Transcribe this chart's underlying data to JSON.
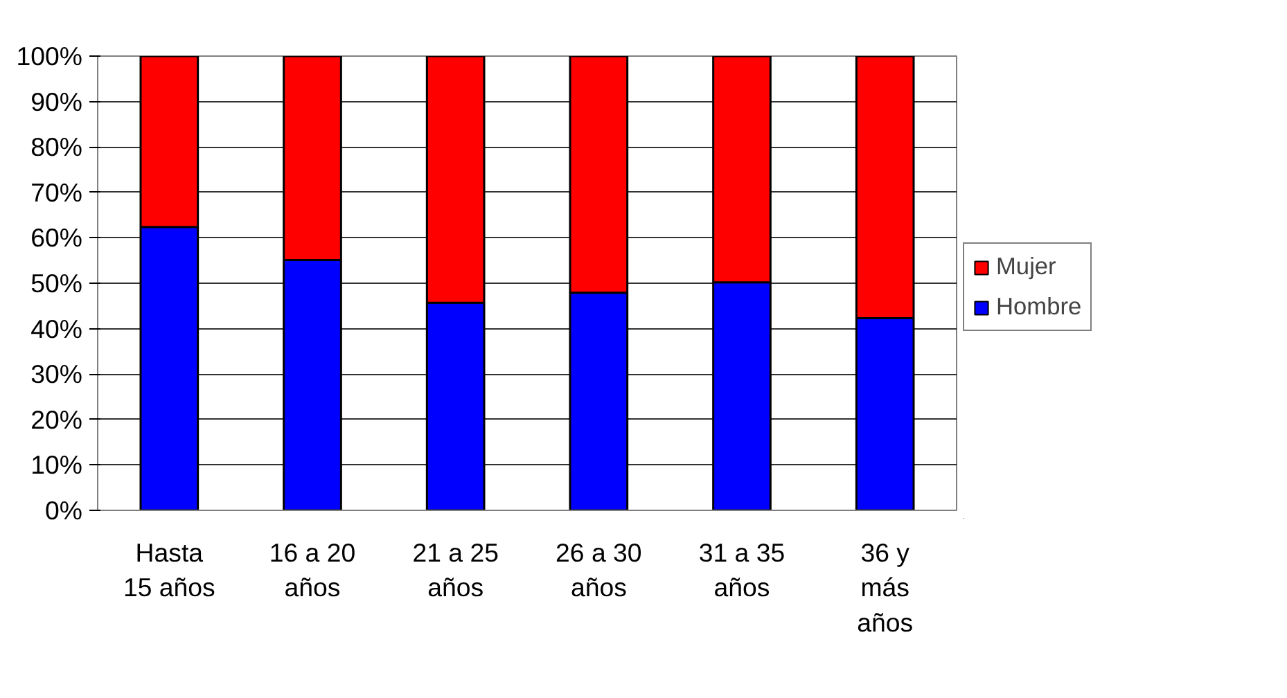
{
  "chart_data": {
    "type": "bar",
    "stacked": true,
    "categories": [
      "Hasta\n15 años",
      "16 a 20\naños",
      "21 a 25\naños",
      "26 a 30\naños",
      "31 a 35\naños",
      "36 y\nmás\naños"
    ],
    "series": [
      {
        "name": "Hombre",
        "color": "#0000ff",
        "values": [
          62.4,
          55.1,
          45.7,
          47.9,
          50.2,
          42.3
        ]
      },
      {
        "name": "Mujer",
        "color": "#ff0000",
        "values": [
          37.6,
          44.9,
          54.3,
          52.1,
          49.8,
          57.7
        ]
      }
    ],
    "ylim": [
      0,
      100
    ],
    "yticks": [
      {
        "value": 0,
        "label": "0%"
      },
      {
        "value": 10,
        "label": "10%"
      },
      {
        "value": 20,
        "label": "20%"
      },
      {
        "value": 30,
        "label": "30%"
      },
      {
        "value": 40,
        "label": "40%"
      },
      {
        "value": 50,
        "label": "50%"
      },
      {
        "value": 60,
        "label": "60%"
      },
      {
        "value": 70,
        "label": "70%"
      },
      {
        "value": 80,
        "label": "80%"
      },
      {
        "value": 90,
        "label": "90%"
      },
      {
        "value": 100,
        "label": "100%"
      }
    ],
    "grid": "y",
    "legend": "right"
  }
}
